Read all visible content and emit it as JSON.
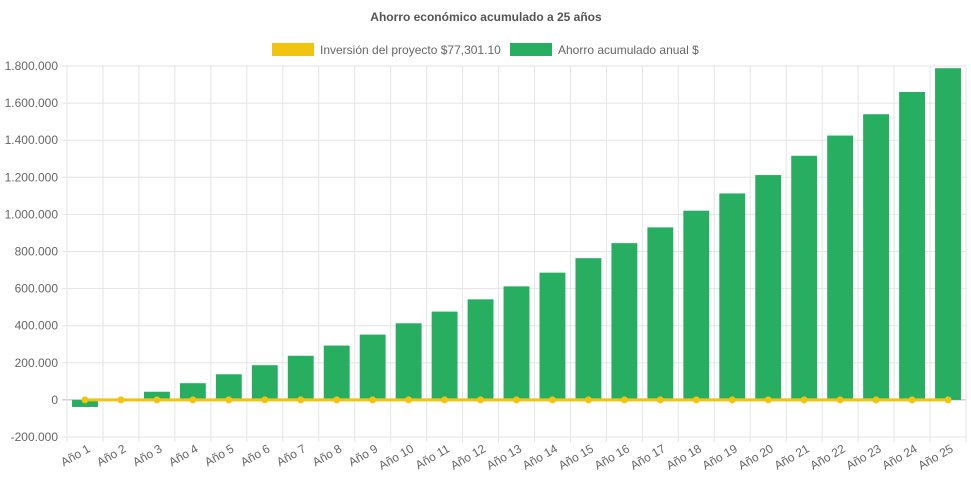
{
  "chart_data": {
    "type": "bar",
    "title": "Ahorro económico acumulado a 25 años",
    "xlabel": "",
    "ylabel": "",
    "ylim": [
      -200000,
      1800000
    ],
    "y_ticks": [
      -200000,
      0,
      200000,
      400000,
      600000,
      800000,
      1000000,
      1200000,
      1400000,
      1600000,
      1800000
    ],
    "y_tick_labels": [
      "-200.000",
      "0",
      "200.000",
      "400.000",
      "600.000",
      "800.000",
      "1.000.000",
      "1.200.000",
      "1.400.000",
      "1.600.000",
      "1.800.000"
    ],
    "grid": true,
    "legend_position": "top",
    "categories": [
      "Año 1",
      "Año 2",
      "Año 3",
      "Año 4",
      "Año 5",
      "Año 6",
      "Año 7",
      "Año 8",
      "Año 9",
      "Año 10",
      "Año 11",
      "Año 12",
      "Año 13",
      "Año 14",
      "Año 15",
      "Año 16",
      "Año 17",
      "Año 18",
      "Año 19",
      "Año 20",
      "Año 21",
      "Año 22",
      "Año 23",
      "Año 24",
      "Año 25"
    ],
    "series": [
      {
        "name": "Inversión del proyecto $77,301.10",
        "type": "line",
        "color": "#f1c40f",
        "values": [
          0,
          0,
          0,
          0,
          0,
          0,
          0,
          0,
          0,
          0,
          0,
          0,
          0,
          0,
          0,
          0,
          0,
          0,
          0,
          0,
          0,
          0,
          0,
          0,
          0
        ]
      },
      {
        "name": "Ahorro acumulado anual $",
        "type": "bar",
        "color": "#27ae60",
        "values": [
          -38000,
          -2000,
          44000,
          90000,
          138000,
          187000,
          238000,
          293000,
          352000,
          413000,
          476000,
          542000,
          612000,
          686000,
          764000,
          845000,
          930000,
          1020000,
          1113000,
          1212000,
          1316000,
          1425000,
          1540000,
          1660000,
          1788000
        ]
      }
    ]
  }
}
